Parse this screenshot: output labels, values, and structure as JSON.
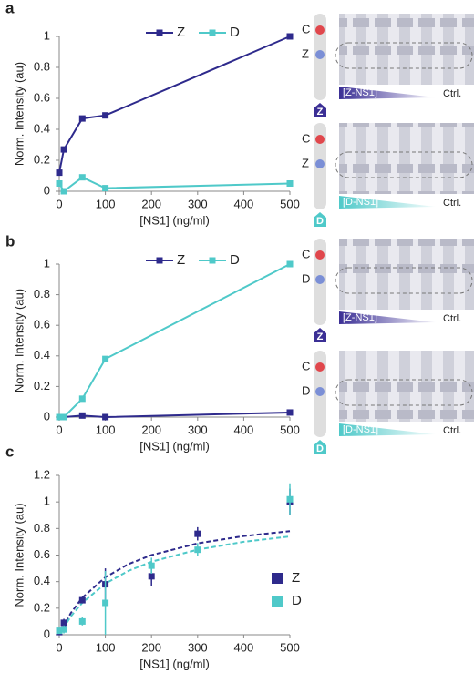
{
  "panel_labels": [
    "a",
    "b",
    "c"
  ],
  "chart_data": [
    {
      "type": "line",
      "x": [
        0,
        10,
        50,
        100,
        500
      ],
      "series": [
        {
          "name": "Z",
          "color": "#2e2a8c",
          "values": [
            0.12,
            0.27,
            0.47,
            0.49,
            1.0
          ]
        },
        {
          "name": "D",
          "color": "#4fc9c9",
          "values": [
            0.05,
            0.0,
            0.09,
            0.02,
            0.05
          ]
        }
      ],
      "xlim": [
        0,
        500
      ],
      "xticks": [
        0,
        100,
        200,
        300,
        400,
        500
      ],
      "ylim": [
        0,
        1
      ],
      "yticks": [
        0,
        0.2,
        0.4,
        0.6,
        0.8,
        1
      ],
      "x_label": "[NS1] (ng/ml)",
      "y_label": "Norm. Intensity (au)",
      "legend": "top"
    },
    {
      "type": "line",
      "x": [
        0,
        10,
        50,
        100,
        500
      ],
      "series": [
        {
          "name": "Z",
          "color": "#2e2a8c",
          "values": [
            0.0,
            0.0,
            0.01,
            0.0,
            0.03
          ]
        },
        {
          "name": "D",
          "color": "#4fc9c9",
          "values": [
            0.0,
            0.0,
            0.12,
            0.38,
            1.0
          ]
        }
      ],
      "xlim": [
        0,
        500
      ],
      "xticks": [
        0,
        100,
        200,
        300,
        400,
        500
      ],
      "ylim": [
        0,
        1
      ],
      "yticks": [
        0,
        0.2,
        0.4,
        0.6,
        0.8,
        1
      ],
      "x_label": "[NS1] (ng/ml)",
      "y_label": "Norm. Intensity (au)",
      "legend": "top"
    },
    {
      "type": "scatter",
      "x": [
        0,
        10,
        50,
        100,
        200,
        300,
        500
      ],
      "series": [
        {
          "name": "Z",
          "color": "#2e2a8c",
          "values": [
            0.02,
            0.09,
            0.26,
            0.38,
            0.44,
            0.76,
            1.0
          ],
          "errors": [
            0.02,
            0.03,
            0.02,
            0.12,
            0.07,
            0.05,
            0.1
          ]
        },
        {
          "name": "D",
          "color": "#4fc9c9",
          "values": [
            0.03,
            0.04,
            0.1,
            0.24,
            0.52,
            0.64,
            1.02
          ],
          "errors": [
            0.02,
            0.03,
            0.03,
            0.24,
            0.06,
            0.05,
            0.12
          ]
        }
      ],
      "fits": [
        {
          "color": "#2e2a8c",
          "x": [
            0,
            25,
            50,
            100,
            150,
            200,
            300,
            400,
            500
          ],
          "values": [
            0,
            0.163,
            0.279,
            0.433,
            0.532,
            0.6,
            0.688,
            0.743,
            0.78
          ]
        },
        {
          "color": "#4fc9c9",
          "x": [
            0,
            25,
            50,
            100,
            150,
            200,
            300,
            400,
            500
          ],
          "values": [
            0,
            0.138,
            0.241,
            0.385,
            0.481,
            0.55,
            0.641,
            0.7,
            0.74
          ]
        }
      ],
      "xlim": [
        0,
        500
      ],
      "xticks": [
        0,
        100,
        200,
        300,
        400,
        500
      ],
      "ylim": [
        0,
        1.2
      ],
      "yticks": [
        0,
        0.2,
        0.4,
        0.6,
        0.8,
        1,
        1.2
      ],
      "x_label": "[NS1] (ng/ml)",
      "y_label": "Norm. Intensity (au)",
      "legend": "lower right"
    }
  ],
  "strips": [
    {
      "control": "C",
      "test": "Z",
      "gradient": "[Z-NS1]",
      "end": "Ctrl.",
      "icon": "Z"
    },
    {
      "control": "C",
      "test": "Z",
      "gradient": "[D-NS1]",
      "end": "Ctrl.",
      "icon": "D"
    },
    {
      "control": "C",
      "test": "D",
      "gradient": "[Z-NS1]",
      "end": "Ctrl.",
      "icon": "Z"
    },
    {
      "control": "C",
      "test": "D",
      "gradient": "[D-NS1]",
      "end": "Ctrl.",
      "icon": "D"
    }
  ]
}
